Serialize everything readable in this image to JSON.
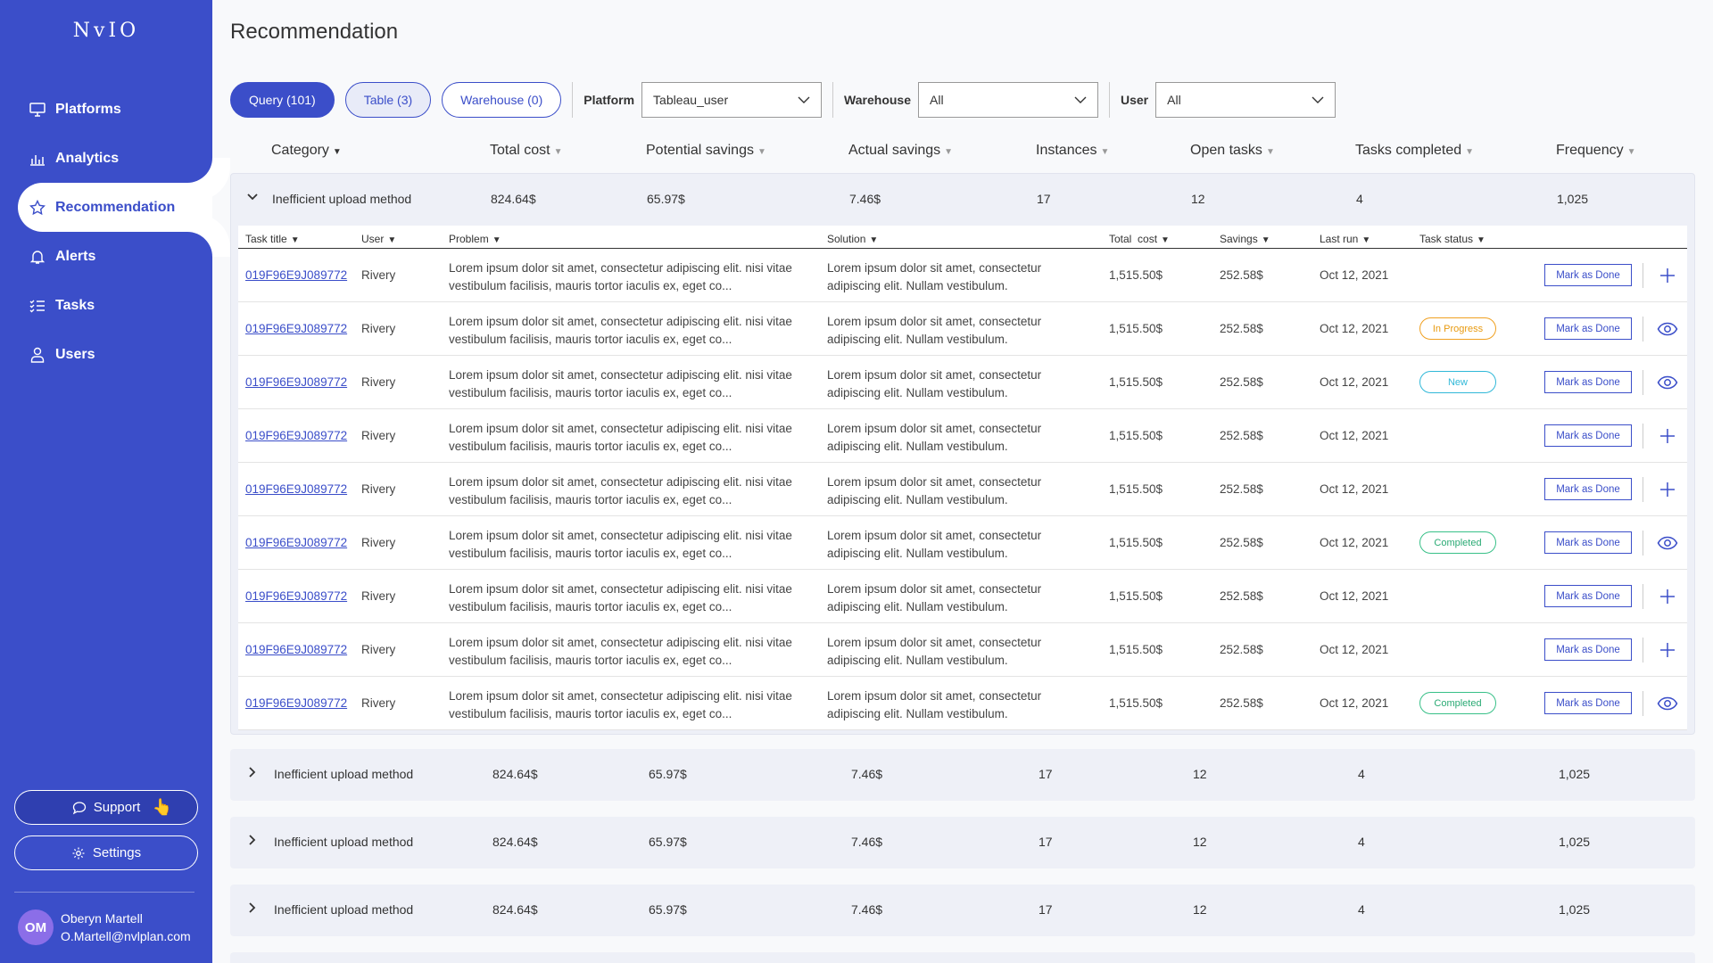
{
  "app": {
    "logo": "NvIO"
  },
  "sidebar": {
    "items": [
      {
        "label": "Platforms",
        "icon": "monitor-icon"
      },
      {
        "label": "Analytics",
        "icon": "bar-chart-icon"
      },
      {
        "label": "Recommendation",
        "icon": "star-icon",
        "active": true
      },
      {
        "label": "Alerts",
        "icon": "bell-icon"
      },
      {
        "label": "Tasks",
        "icon": "task-list-icon"
      },
      {
        "label": "Users",
        "icon": "user-icon"
      }
    ],
    "support_label": "Support",
    "settings_label": "Settings",
    "user": {
      "initials": "OM",
      "name": "Oberyn Martell",
      "email": "O.Martell@nvlplan.com"
    }
  },
  "page": {
    "title": "Recommendation"
  },
  "filters": {
    "tabs": [
      {
        "label": "Query (101)"
      },
      {
        "label": "Table (3)"
      },
      {
        "label": "Warehouse (0)"
      }
    ],
    "platform_label": "Platform",
    "platform_value": "Tableau_user",
    "warehouse_label": "Warehouse",
    "warehouse_value": "All",
    "user_label": "User",
    "user_value": "All"
  },
  "category_columns": [
    "Category",
    "Total cost",
    "Potential savings",
    "Actual savings",
    "Instances",
    "Open tasks",
    "Tasks completed",
    "Frequency"
  ],
  "groups": [
    {
      "category": "Inefficient upload method",
      "total_cost": "824.64$",
      "potential_savings": "65.97$",
      "actual_savings": "7.46$",
      "instances": "17",
      "open_tasks": "12",
      "tasks_completed": "4",
      "frequency": "1,025"
    },
    {
      "category": "Inefficient upload method",
      "total_cost": "824.64$",
      "potential_savings": "65.97$",
      "actual_savings": "7.46$",
      "instances": "17",
      "open_tasks": "12",
      "tasks_completed": "4",
      "frequency": "1,025"
    },
    {
      "category": "Inefficient upload method",
      "total_cost": "824.64$",
      "potential_savings": "65.97$",
      "actual_savings": "7.46$",
      "instances": "17",
      "open_tasks": "12",
      "tasks_completed": "4",
      "frequency": "1,025"
    },
    {
      "category": "Inefficient upload method",
      "total_cost": "824.64$",
      "potential_savings": "65.97$",
      "actual_savings": "7.46$",
      "instances": "17",
      "open_tasks": "12",
      "tasks_completed": "4",
      "frequency": "1,025"
    }
  ],
  "task_columns": [
    "Task title",
    "User",
    "Problem",
    "Solution",
    "Total  cost",
    "Savings",
    "Last run",
    "Task status"
  ],
  "mark_done_label": "Mark as Done",
  "tasks": [
    {
      "title": "019F96E9J089772",
      "user": "Rivery",
      "problem": "Lorem ipsum dolor sit amet, consectetur adipiscing elit. nisi vitae vestibulum facilisis, mauris tortor iaculis ex, eget co...",
      "solution": "Lorem ipsum dolor sit amet, consectetur adipiscing elit. Nullam vestibulum.",
      "total_cost": "1,515.50$",
      "savings": "252.58$",
      "last_run": "Oct 12, 2021",
      "status": "",
      "status_kind": "",
      "action_icon": "plus-icon"
    },
    {
      "title": "019F96E9J089772",
      "user": "Rivery",
      "problem": "Lorem ipsum dolor sit amet, consectetur adipiscing elit. nisi vitae vestibulum facilisis, mauris tortor iaculis ex, eget co...",
      "solution": "Lorem ipsum dolor sit amet, consectetur adipiscing elit. Nullam vestibulum.",
      "total_cost": "1,515.50$",
      "savings": "252.58$",
      "last_run": "Oct 12, 2021",
      "status": "In Progress",
      "status_kind": "progress",
      "action_icon": "eye-icon"
    },
    {
      "title": "019F96E9J089772",
      "user": "Rivery",
      "problem": "Lorem ipsum dolor sit amet, consectetur adipiscing elit. nisi vitae vestibulum facilisis, mauris tortor iaculis ex, eget co...",
      "solution": "Lorem ipsum dolor sit amet, consectetur adipiscing elit. Nullam vestibulum.",
      "total_cost": "1,515.50$",
      "savings": "252.58$",
      "last_run": "Oct 12, 2021",
      "status": "New",
      "status_kind": "new",
      "action_icon": "eye-icon"
    },
    {
      "title": "019F96E9J089772",
      "user": "Rivery",
      "problem": "Lorem ipsum dolor sit amet, consectetur adipiscing elit. nisi vitae vestibulum facilisis, mauris tortor iaculis ex, eget co...",
      "solution": "Lorem ipsum dolor sit amet, consectetur adipiscing elit. Nullam vestibulum.",
      "total_cost": "1,515.50$",
      "savings": "252.58$",
      "last_run": "Oct 12, 2021",
      "status": "",
      "status_kind": "",
      "action_icon": "plus-icon"
    },
    {
      "title": "019F96E9J089772",
      "user": "Rivery",
      "problem": "Lorem ipsum dolor sit amet, consectetur adipiscing elit. nisi vitae vestibulum facilisis, mauris tortor iaculis ex, eget co...",
      "solution": "Lorem ipsum dolor sit amet, consectetur adipiscing elit. Nullam vestibulum.",
      "total_cost": "1,515.50$",
      "savings": "252.58$",
      "last_run": "Oct 12, 2021",
      "status": "",
      "status_kind": "",
      "action_icon": "plus-icon"
    },
    {
      "title": "019F96E9J089772",
      "user": "Rivery",
      "problem": "Lorem ipsum dolor sit amet, consectetur adipiscing elit. nisi vitae vestibulum facilisis, mauris tortor iaculis ex, eget co...",
      "solution": "Lorem ipsum dolor sit amet, consectetur adipiscing elit. Nullam vestibulum.",
      "total_cost": "1,515.50$",
      "savings": "252.58$",
      "last_run": "Oct 12, 2021",
      "status": "Completed",
      "status_kind": "completed",
      "action_icon": "eye-icon"
    },
    {
      "title": "019F96E9J089772",
      "user": "Rivery",
      "problem": "Lorem ipsum dolor sit amet, consectetur adipiscing elit. nisi vitae vestibulum facilisis, mauris tortor iaculis ex, eget co...",
      "solution": "Lorem ipsum dolor sit amet, consectetur adipiscing elit. Nullam vestibulum.",
      "total_cost": "1,515.50$",
      "savings": "252.58$",
      "last_run": "Oct 12, 2021",
      "status": "",
      "status_kind": "",
      "action_icon": "plus-icon"
    },
    {
      "title": "019F96E9J089772",
      "user": "Rivery",
      "problem": "Lorem ipsum dolor sit amet, consectetur adipiscing elit. nisi vitae vestibulum facilisis, mauris tortor iaculis ex, eget co...",
      "solution": "Lorem ipsum dolor sit amet, consectetur adipiscing elit. Nullam vestibulum.",
      "total_cost": "1,515.50$",
      "savings": "252.58$",
      "last_run": "Oct 12, 2021",
      "status": "",
      "status_kind": "",
      "action_icon": "plus-icon"
    },
    {
      "title": "019F96E9J089772",
      "user": "Rivery",
      "problem": "Lorem ipsum dolor sit amet, consectetur adipiscing elit. nisi vitae vestibulum facilisis, mauris tortor iaculis ex, eget co...",
      "solution": "Lorem ipsum dolor sit amet, consectetur adipiscing elit. Nullam vestibulum.",
      "total_cost": "1,515.50$",
      "savings": "252.58$",
      "last_run": "Oct 12, 2021",
      "status": "Completed",
      "status_kind": "completed",
      "action_icon": "eye-icon"
    }
  ],
  "colors": {
    "brand": "#3b4ec9",
    "in_progress": "#f0a020",
    "new": "#30b8d8",
    "completed": "#38c088"
  }
}
